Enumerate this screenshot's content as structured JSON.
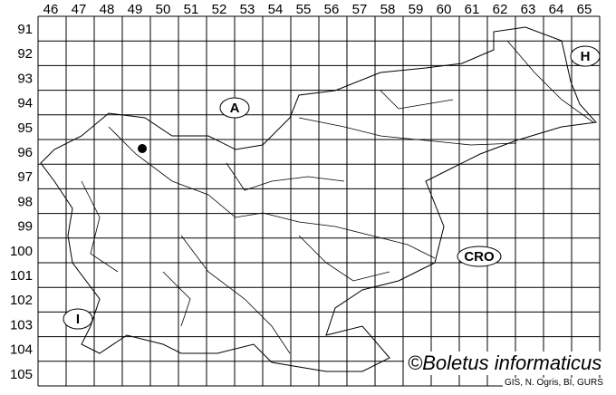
{
  "map": {
    "column_labels": [
      "46",
      "47",
      "48",
      "49",
      "50",
      "51",
      "52",
      "53",
      "54",
      "55",
      "56",
      "57",
      "58",
      "59",
      "60",
      "61",
      "62",
      "63",
      "64",
      "65"
    ],
    "row_labels": [
      "91",
      "92",
      "93",
      "94",
      "95",
      "96",
      "97",
      "98",
      "99",
      "100",
      "101",
      "102",
      "103",
      "104",
      "105"
    ],
    "regions": [
      {
        "id": "austria",
        "label": "A"
      },
      {
        "id": "hungary",
        "label": "H"
      },
      {
        "id": "croatia",
        "label": "CRO"
      },
      {
        "id": "italy",
        "label": "I"
      }
    ],
    "records": [
      {
        "column": "49",
        "row": "96"
      }
    ],
    "colors": {
      "lines": "#000000",
      "background": "#ffffff",
      "record_dot": "#000000"
    }
  },
  "credit": "©Boletus informaticus",
  "source": "GIS, N. Ogris, BI, GURS"
}
